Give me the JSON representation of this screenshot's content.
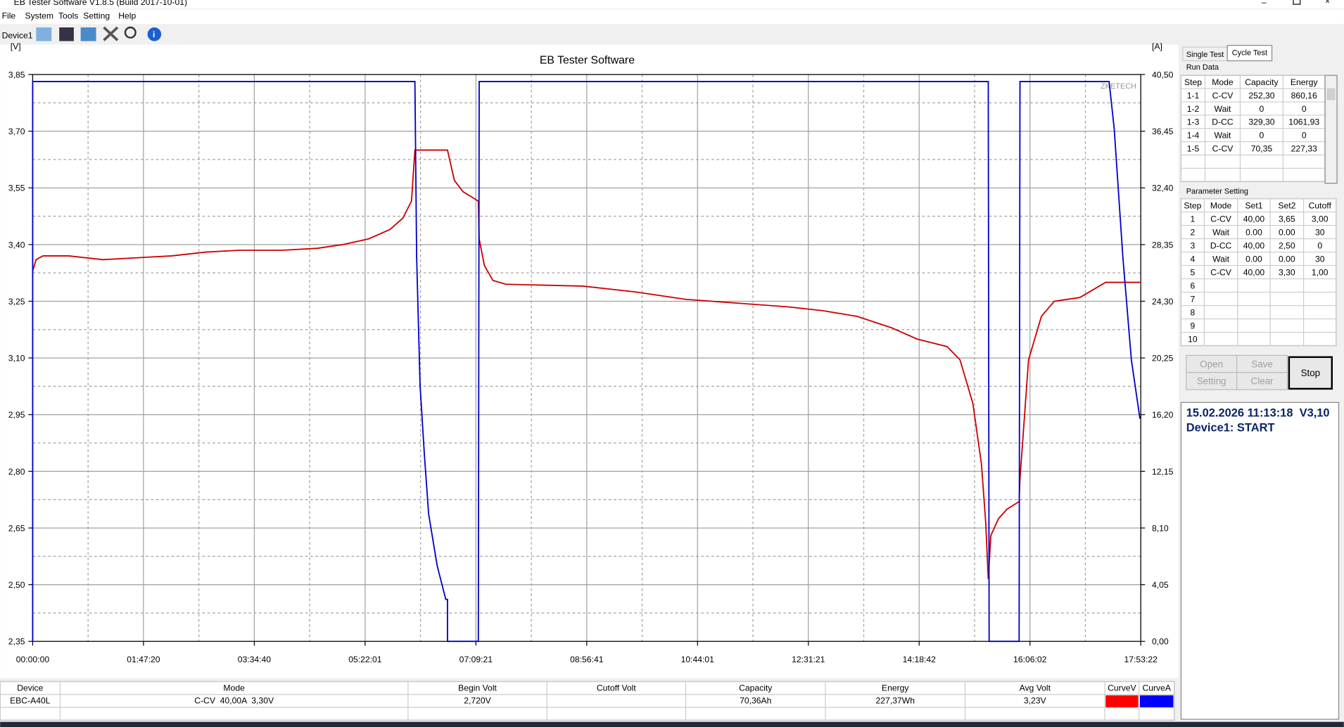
{
  "window": {
    "title": "EB Tester Software V1.8.5 (Build 2017-10-01)",
    "menu": [
      "File",
      "System",
      "Tools",
      "Setting",
      "Help"
    ],
    "device": "Device1"
  },
  "chart_data": {
    "type": "line",
    "title": "EB Tester Software",
    "watermark": "ZKETECH",
    "y_label": "[V]",
    "y2_label": "[A]",
    "xlim": [
      0,
      64402
    ],
    "xticks": [
      {
        "value": 0,
        "label": "00:00:00"
      },
      {
        "value": 6440,
        "label": "01:47:20"
      },
      {
        "value": 12880,
        "label": "03:34:40"
      },
      {
        "value": 19321,
        "label": "05:22:01"
      },
      {
        "value": 25761,
        "label": "07:09:21"
      },
      {
        "value": 32201,
        "label": "08:56:41"
      },
      {
        "value": 38641,
        "label": "10:44:01"
      },
      {
        "value": 45081,
        "label": "12:31:21"
      },
      {
        "value": 51522,
        "label": "14:18:42"
      },
      {
        "value": 57962,
        "label": "16:06:02"
      },
      {
        "value": 64402,
        "label": "17:53:22"
      }
    ],
    "ylim": [
      2.35,
      3.85
    ],
    "yticks": [
      {
        "value": 2.35,
        "label": "2,35"
      },
      {
        "value": 2.5,
        "label": "2,50"
      },
      {
        "value": 2.65,
        "label": "2,65"
      },
      {
        "value": 2.8,
        "label": "2,80"
      },
      {
        "value": 2.95,
        "label": "2,95"
      },
      {
        "value": 3.1,
        "label": "3,10"
      },
      {
        "value": 3.25,
        "label": "3,25"
      },
      {
        "value": 3.4,
        "label": "3,40"
      },
      {
        "value": 3.55,
        "label": "3,55"
      },
      {
        "value": 3.7,
        "label": "3,70"
      },
      {
        "value": 3.85,
        "label": "3,85"
      }
    ],
    "y2lim": [
      0,
      40.5
    ],
    "y2ticks": [
      {
        "value": 0,
        "label": "0,00"
      },
      {
        "value": 4.05,
        "label": "4,05"
      },
      {
        "value": 8.1,
        "label": "8,10"
      },
      {
        "value": 12.15,
        "label": "12,15"
      },
      {
        "value": 16.2,
        "label": "16,20"
      },
      {
        "value": 20.25,
        "label": "20,25"
      },
      {
        "value": 24.3,
        "label": "24,30"
      },
      {
        "value": 28.35,
        "label": "28,35"
      },
      {
        "value": 32.4,
        "label": "32,40"
      },
      {
        "value": 36.45,
        "label": "36,45"
      },
      {
        "value": 40.5,
        "label": "40,50"
      }
    ],
    "grid": true,
    "series": [
      {
        "name": "CurveV",
        "color": "#ff0000",
        "line_color": "#cc0000",
        "x": [
          0,
          199,
          598,
          2092,
          4084,
          6077,
          8069,
          10062,
          12054,
          14545,
          16537,
          18031,
          19526,
          20771,
          21518,
          22016,
          22215,
          24108,
          24507,
          25005,
          25901,
          25951,
          26250,
          26748,
          27495,
          31978,
          34967,
          37955,
          40944,
          43932,
          45925,
          47917,
          49910,
          51404,
          53147,
          53894,
          54642,
          55140,
          55389,
          55538,
          55688,
          56136,
          56634,
          57331,
          57381,
          57879,
          58626,
          59374,
          60868,
          62362,
          64402
        ],
        "values": [
          3.33,
          3.36,
          3.37,
          3.37,
          3.36,
          3.365,
          3.37,
          3.38,
          3.385,
          3.385,
          3.39,
          3.4,
          3.415,
          3.44,
          3.47,
          3.515,
          3.65,
          3.65,
          3.57,
          3.54,
          3.515,
          3.415,
          3.345,
          3.305,
          3.295,
          3.29,
          3.275,
          3.255,
          3.245,
          3.235,
          3.225,
          3.21,
          3.18,
          3.15,
          3.13,
          3.095,
          2.98,
          2.82,
          2.665,
          2.515,
          2.63,
          2.675,
          2.7,
          2.72,
          2.78,
          3.095,
          3.21,
          3.25,
          3.26,
          3.3,
          3.3
        ]
      },
      {
        "name": "CurveA",
        "color": "#0000ff",
        "line_color": "#0000cc",
        "axis": "y2",
        "x": [
          0,
          0,
          22215,
          22315,
          22514,
          22763,
          23012,
          23510,
          24008,
          24108,
          24108,
          25901,
          25951,
          55538,
          55588,
          57331,
          57381,
          62561,
          62860,
          63358,
          63856,
          64355
        ],
        "values": [
          0,
          40.0,
          40.0,
          27.5,
          18.3,
          13.4,
          9.1,
          5.4,
          3.0,
          3.0,
          0,
          0,
          40.0,
          40.0,
          0,
          0,
          40.0,
          40.0,
          36.6,
          27.5,
          20.1,
          15.9
        ]
      }
    ]
  },
  "tabs": [
    "Single Test",
    "Cycle Test"
  ],
  "run_data": {
    "title": "Run Data",
    "columns": [
      "Step",
      "Mode",
      "Capacity",
      "Energy"
    ],
    "rows": [
      [
        "1-1",
        "C-CV",
        "252,30",
        "860,16"
      ],
      [
        "1-2",
        "Wait",
        "0",
        "0"
      ],
      [
        "1-3",
        "D-CC",
        "329,30",
        "1061,93"
      ],
      [
        "1-4",
        "Wait",
        "0",
        "0"
      ],
      [
        "1-5",
        "C-CV",
        "70,35",
        "227,33"
      ]
    ]
  },
  "parameter_setting": {
    "title": "Parameter Setting",
    "columns": [
      "Step",
      "Mode",
      "Set1",
      "Set2",
      "Cutoff"
    ],
    "rows": [
      [
        "1",
        "C-CV",
        "40,00",
        "3,65",
        "3,00"
      ],
      [
        "2",
        "Wait",
        "0.00",
        "0.00",
        "30"
      ],
      [
        "3",
        "D-CC",
        "40,00",
        "2,50",
        "0"
      ],
      [
        "4",
        "Wait",
        "0.00",
        "0.00",
        "30"
      ],
      [
        "5",
        "C-CV",
        "40,00",
        "3,30",
        "1,00"
      ],
      [
        "6"
      ],
      [
        "7"
      ],
      [
        "8"
      ],
      [
        "9"
      ],
      [
        "10"
      ]
    ]
  },
  "buttons": {
    "open": "Open",
    "save": "Save",
    "setting": "Setting",
    "clear": "Clear",
    "stop": "Stop"
  },
  "status": [
    "15.02.2026 11:13:18  V3,10",
    "Device1: START"
  ],
  "summary": {
    "columns": [
      "Device",
      "Mode",
      "Begin Volt",
      "Cutoff Volt",
      "Capacity",
      "Energy",
      "Avg Volt"
    ],
    "row": [
      "EBC-A40L",
      "C-CV  40,00A  3,30V",
      "2,720V",
      null,
      "70,36Ah",
      "227,37Wh",
      "3,23V"
    ]
  }
}
